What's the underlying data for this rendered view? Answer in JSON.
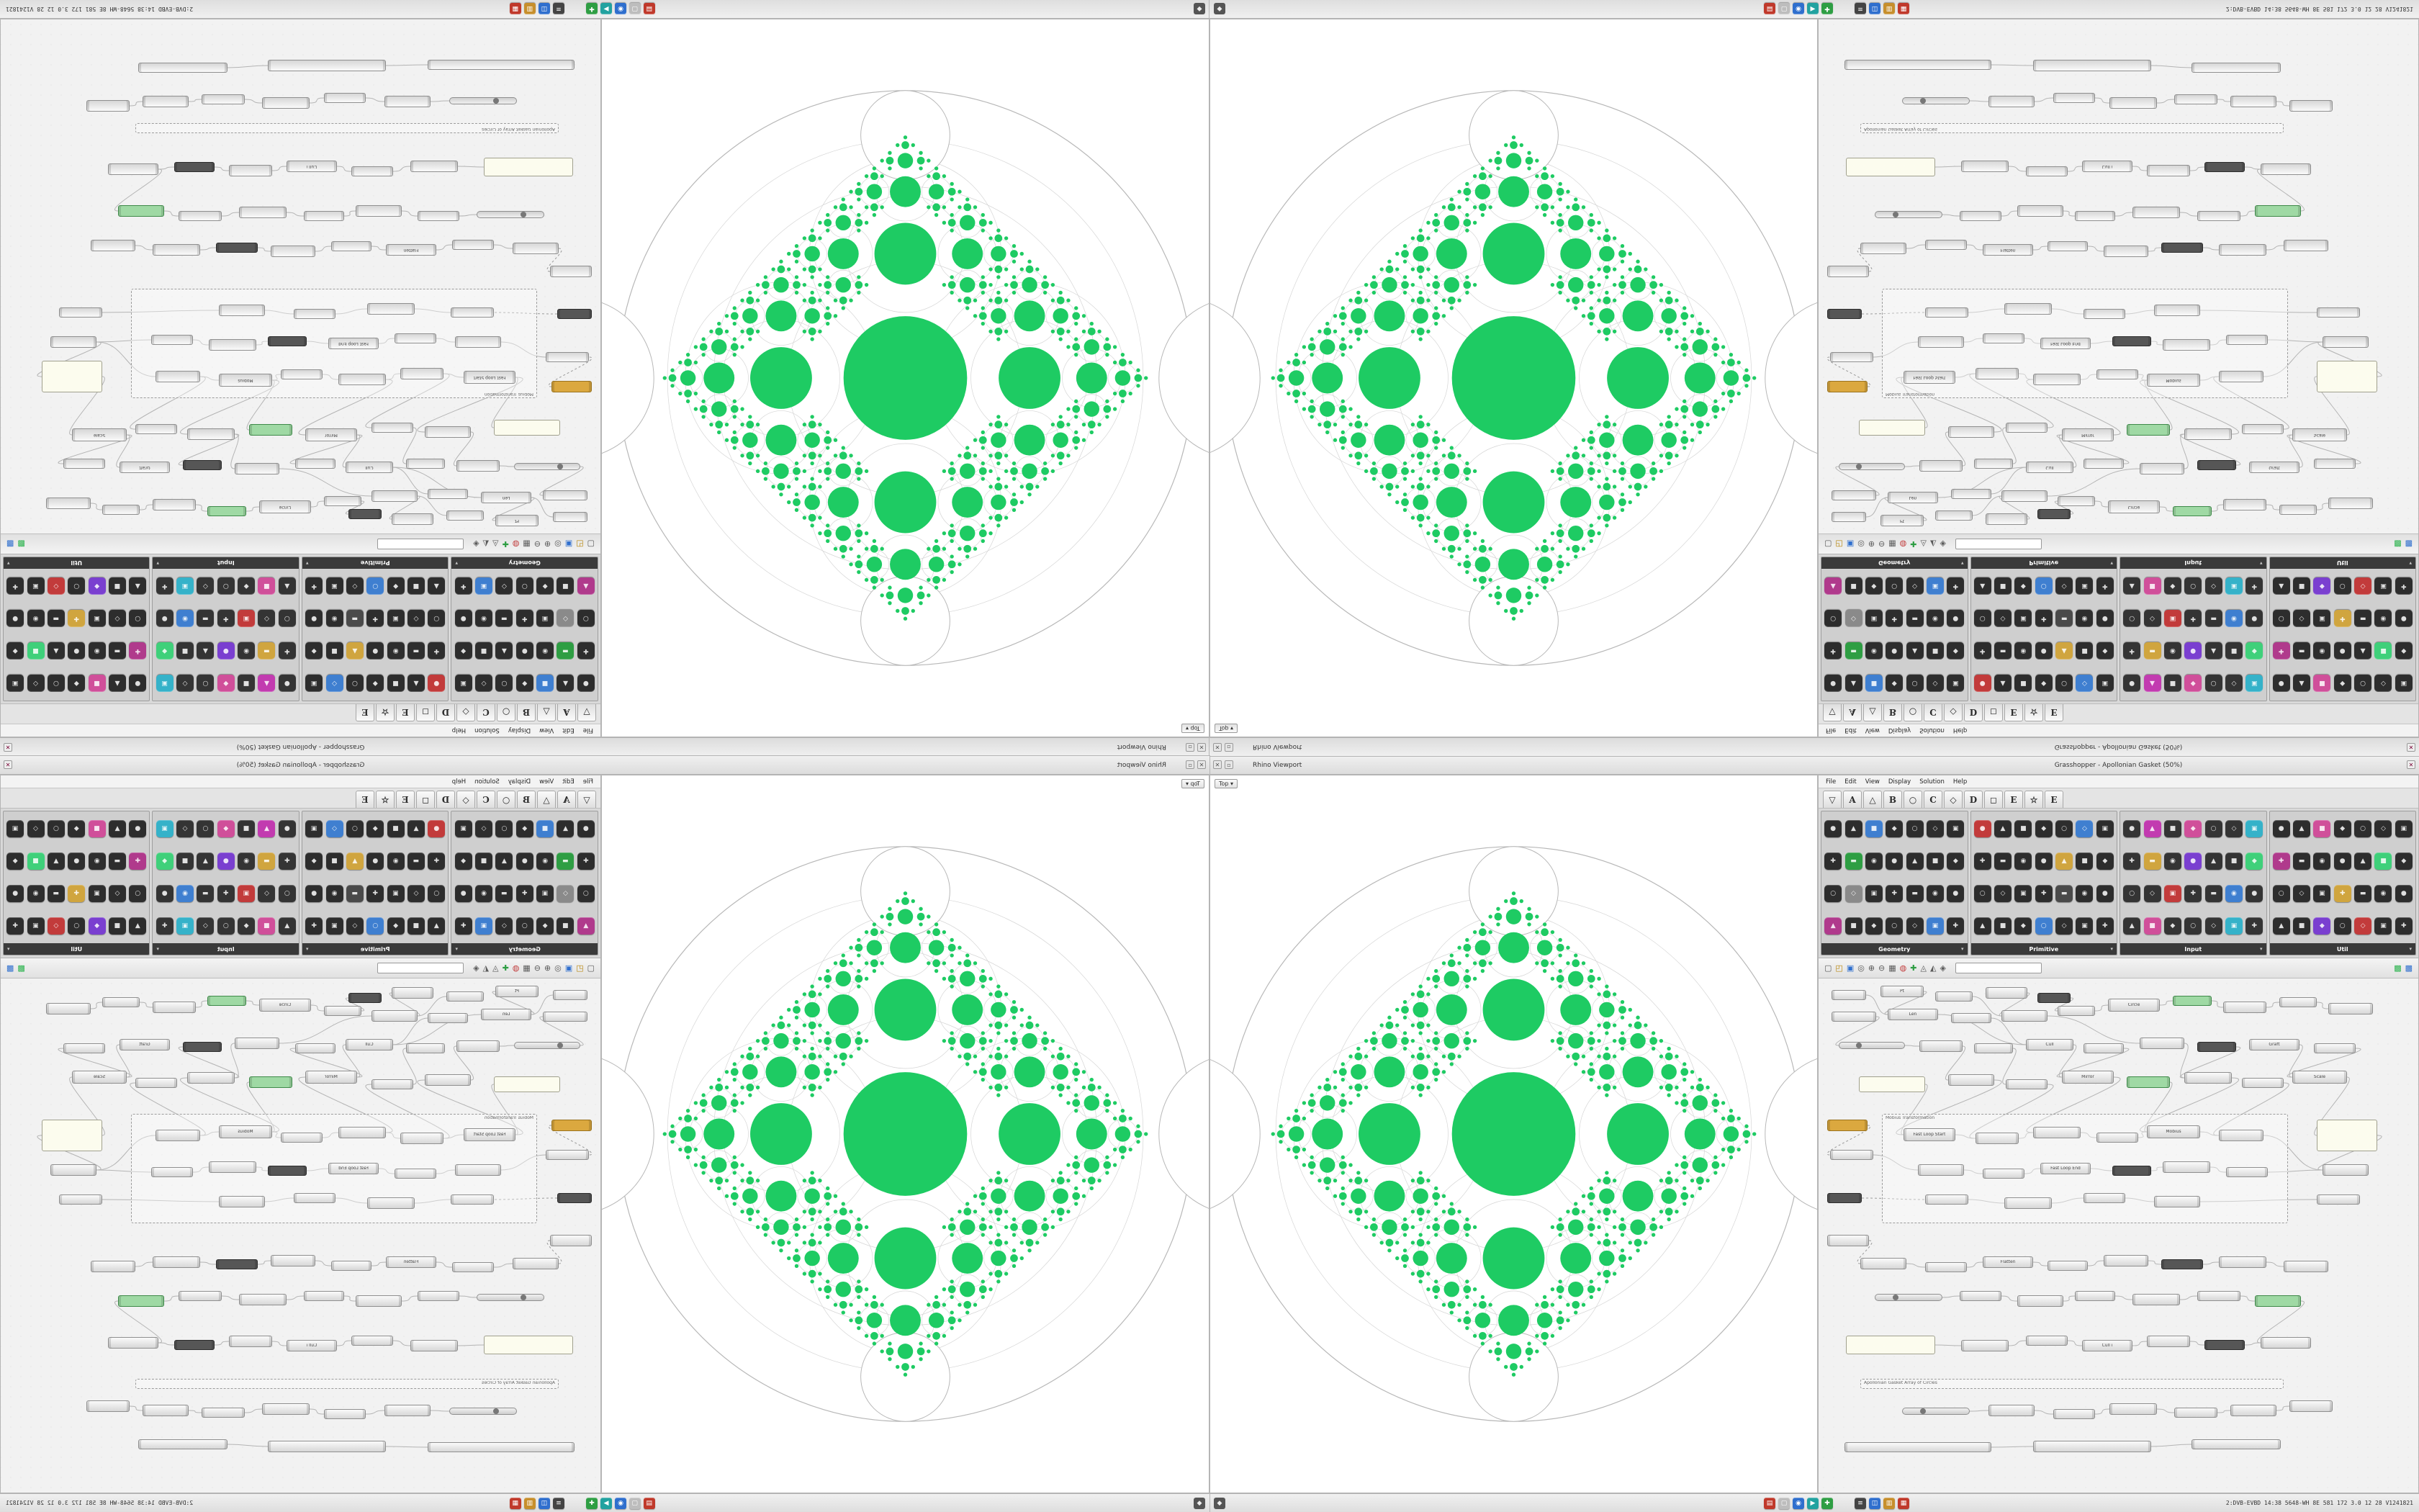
{
  "titlebar": {
    "rhino_title": "Rhino Viewport",
    "gh_title": "Grasshopper - Apollonian Gasket (50%)",
    "close_glyph": "✕",
    "min_glyph": "▫"
  },
  "viewport": {
    "chip_label": "Top",
    "chip_caret": "▾",
    "bg": "#ffffff",
    "fractal": {
      "outer_radius": 400,
      "root_radius": 86,
      "child_ratio": 0.5,
      "gap_factor": 1.34,
      "depth": 5,
      "green": "#1ecb63",
      "lace_color": "#d6d6d6",
      "outer_color": "#b8b8b8",
      "gap_circle": {
        "distance": 338,
        "radius": 62
      },
      "edge_circle_radius": 112
    }
  },
  "menu": {
    "items": [
      "File",
      "Edit",
      "View",
      "Display",
      "Solution",
      "Help"
    ]
  },
  "tabs": [
    {
      "label": "▽"
    },
    {
      "label": "A"
    },
    {
      "label": "△"
    },
    {
      "label": "B"
    },
    {
      "label": "○"
    },
    {
      "label": "C"
    },
    {
      "label": "◇"
    },
    {
      "label": "D"
    },
    {
      "label": "◻"
    },
    {
      "label": "E"
    },
    {
      "label": "☆"
    },
    {
      "label": "E"
    }
  ],
  "palette": {
    "show_all_glyph": "▾",
    "glyph_cycle": [
      "●",
      "▲",
      "■",
      "◆",
      "○",
      "◇",
      "▣",
      "✚",
      "▬",
      "◉"
    ],
    "groups": [
      {
        "name": "Geometry",
        "count": 28,
        "base": "#2d2d2d",
        "accents": {
          "2": "#3f7fd0",
          "8": "#2e9e43",
          "15": "#8a8a8a",
          "21": "#b03a8c",
          "26": "#3f7fd0"
        }
      },
      {
        "name": "Primitive",
        "count": 28,
        "base": "#2d2d2d",
        "accents": {
          "0": "#c23b3b",
          "5": "#3f7fd0",
          "11": "#d0a53f",
          "18": "#4a4a4a",
          "24": "#3f7fd0"
        }
      },
      {
        "name": "Input",
        "count": 28,
        "base": "#343434",
        "accents": {
          "1": "#c23bb0",
          "3": "#d04f9a",
          "6": "#35b2c9",
          "8": "#d0a53f",
          "10": "#7a3fd0",
          "13": "#3fd07a",
          "16": "#c23b3b",
          "19": "#3f7fd0",
          "22": "#d04f9a",
          "26": "#35b2c9"
        }
      },
      {
        "name": "Util",
        "count": 28,
        "base": "#2d2d2d",
        "accents": {
          "2": "#d04f9a",
          "7": "#b03a8c",
          "12": "#3fd07a",
          "17": "#d0a53f",
          "23": "#7a3fd0",
          "25": "#c23b3b"
        }
      }
    ]
  },
  "toolbar": {
    "search_value": "",
    "left_icons": [
      {
        "name": "new-file",
        "glyph": "▢",
        "color": "#5a5a5a"
      },
      {
        "name": "open-file",
        "glyph": "◰",
        "color": "#b8860b"
      },
      {
        "name": "save-file",
        "glyph": "▣",
        "color": "#2f6fce"
      },
      {
        "name": "zoom",
        "glyph": "◎",
        "color": "#5a5a5a"
      },
      {
        "name": "zoom-in",
        "glyph": "⊕",
        "color": "#5a5a5a"
      },
      {
        "name": "zoom-out",
        "glyph": "⊖",
        "color": "#5a5a5a"
      },
      {
        "name": "grid",
        "glyph": "▦",
        "color": "#5a5a5a"
      },
      {
        "name": "sketch",
        "glyph": "◍",
        "color": "#c23b3b"
      },
      {
        "name": "add",
        "glyph": "✚",
        "color": "#2e9e43"
      },
      {
        "name": "wire-display",
        "glyph": "◬",
        "color": "#5a5a5a"
      },
      {
        "name": "cluster",
        "glyph": "◭",
        "color": "#5a5a5a"
      },
      {
        "name": "preview-mesh",
        "glyph": "◈",
        "color": "#5a5a5a"
      }
    ],
    "right_icons": [
      {
        "name": "preview-shaded",
        "glyph": "▩",
        "color": "#27b24a"
      },
      {
        "name": "preview-wire",
        "glyph": "▩",
        "color": "#2f6fce"
      }
    ]
  },
  "canvas": {
    "nodes": [
      [
        18,
        16,
        48,
        14,
        "n",
        ""
      ],
      [
        86,
        10,
        60,
        16,
        "n",
        "Pt"
      ],
      [
        162,
        18,
        52,
        14,
        "n",
        ""
      ],
      [
        232,
        12,
        58,
        16,
        "n",
        ""
      ],
      [
        304,
        20,
        46,
        14,
        "d",
        ""
      ],
      [
        18,
        46,
        62,
        14,
        "n",
        ""
      ],
      [
        96,
        42,
        70,
        16,
        "n",
        "Len"
      ],
      [
        184,
        48,
        56,
        14,
        "n",
        ""
      ],
      [
        254,
        44,
        64,
        16,
        "n",
        ""
      ],
      [
        332,
        38,
        52,
        14,
        "n",
        ""
      ],
      [
        402,
        28,
        72,
        18,
        "n",
        "Circle"
      ],
      [
        492,
        24,
        54,
        14,
        "g",
        ""
      ],
      [
        562,
        32,
        60,
        16,
        "n",
        ""
      ],
      [
        640,
        26,
        52,
        14,
        "n",
        ""
      ],
      [
        708,
        34,
        62,
        16,
        "n",
        ""
      ],
      [
        28,
        88,
        92,
        10,
        "s",
        ""
      ],
      [
        140,
        86,
        60,
        16,
        "n",
        ""
      ],
      [
        216,
        90,
        54,
        14,
        "n",
        ""
      ],
      [
        288,
        84,
        66,
        16,
        "n",
        "Cull"
      ],
      [
        368,
        90,
        56,
        14,
        "n",
        ""
      ],
      [
        446,
        82,
        62,
        16,
        "n",
        ""
      ],
      [
        526,
        88,
        54,
        14,
        "d",
        ""
      ],
      [
        598,
        84,
        70,
        16,
        "n",
        "Graft"
      ],
      [
        688,
        90,
        58,
        14,
        "n",
        ""
      ],
      [
        56,
        136,
        92,
        22,
        "p",
        ""
      ],
      [
        180,
        133,
        64,
        16,
        "n",
        ""
      ],
      [
        260,
        140,
        58,
        14,
        "n",
        ""
      ],
      [
        338,
        128,
        72,
        18,
        "n",
        "Mirror"
      ],
      [
        428,
        136,
        60,
        16,
        "g",
        ""
      ],
      [
        508,
        130,
        66,
        16,
        "n",
        ""
      ],
      [
        588,
        138,
        58,
        14,
        "n",
        ""
      ],
      [
        658,
        128,
        76,
        18,
        "n",
        "Scale"
      ],
      [
        12,
        196,
        56,
        16,
        "o",
        ""
      ],
      [
        16,
        238,
        60,
        14,
        "n",
        ""
      ],
      [
        12,
        298,
        48,
        14,
        "d",
        ""
      ],
      [
        12,
        356,
        58,
        16,
        "n",
        ""
      ],
      [
        88,
        188,
        564,
        152,
        "x",
        "Möbius Transformation"
      ],
      [
        118,
        208,
        72,
        18,
        "n",
        "Fast Loop Start"
      ],
      [
        218,
        214,
        60,
        16,
        "n",
        ""
      ],
      [
        298,
        206,
        66,
        16,
        "n",
        ""
      ],
      [
        386,
        214,
        58,
        14,
        "n",
        ""
      ],
      [
        456,
        204,
        74,
        18,
        "n",
        "Möbius"
      ],
      [
        556,
        210,
        62,
        16,
        "n",
        ""
      ],
      [
        138,
        258,
        64,
        16,
        "n",
        ""
      ],
      [
        228,
        264,
        58,
        14,
        "n",
        ""
      ],
      [
        308,
        256,
        70,
        16,
        "n",
        "Fast Loop End"
      ],
      [
        408,
        260,
        54,
        14,
        "d",
        ""
      ],
      [
        478,
        254,
        66,
        16,
        "n",
        ""
      ],
      [
        566,
        262,
        58,
        14,
        "n",
        ""
      ],
      [
        148,
        300,
        60,
        14,
        "n",
        ""
      ],
      [
        258,
        304,
        66,
        16,
        "n",
        ""
      ],
      [
        368,
        298,
        58,
        14,
        "n",
        ""
      ],
      [
        466,
        302,
        64,
        16,
        "n",
        ""
      ],
      [
        692,
        196,
        84,
        44,
        "p",
        ""
      ],
      [
        700,
        258,
        64,
        16,
        "n",
        ""
      ],
      [
        692,
        300,
        60,
        14,
        "n",
        ""
      ],
      [
        58,
        388,
        64,
        16,
        "n",
        ""
      ],
      [
        148,
        394,
        58,
        14,
        "n",
        ""
      ],
      [
        228,
        386,
        70,
        16,
        "n",
        "Flatten"
      ],
      [
        318,
        392,
        56,
        14,
        "n",
        ""
      ],
      [
        396,
        384,
        62,
        16,
        "n",
        ""
      ],
      [
        476,
        390,
        58,
        14,
        "d",
        ""
      ],
      [
        556,
        386,
        66,
        16,
        "n",
        ""
      ],
      [
        646,
        392,
        62,
        16,
        "n",
        ""
      ],
      [
        78,
        438,
        94,
        10,
        "s",
        ""
      ],
      [
        196,
        434,
        58,
        14,
        "n",
        ""
      ],
      [
        276,
        440,
        64,
        16,
        "n",
        ""
      ],
      [
        356,
        434,
        56,
        14,
        "n",
        ""
      ],
      [
        436,
        438,
        66,
        16,
        "n",
        ""
      ],
      [
        526,
        434,
        60,
        14,
        "n",
        ""
      ],
      [
        606,
        440,
        64,
        16,
        "g",
        ""
      ],
      [
        38,
        496,
        124,
        26,
        "p",
        ""
      ],
      [
        198,
        502,
        66,
        16,
        "n",
        ""
      ],
      [
        288,
        496,
        58,
        14,
        "n",
        ""
      ],
      [
        366,
        502,
        70,
        16,
        "n",
        "Cull i"
      ],
      [
        456,
        496,
        60,
        16,
        "n",
        ""
      ],
      [
        536,
        502,
        56,
        14,
        "d",
        ""
      ],
      [
        614,
        498,
        70,
        16,
        "n",
        ""
      ],
      [
        58,
        556,
        588,
        14,
        "x",
        "Apollonian Gasket Array of Circles"
      ],
      [
        116,
        596,
        94,
        10,
        "s",
        ""
      ],
      [
        236,
        592,
        64,
        16,
        "n",
        ""
      ],
      [
        326,
        598,
        58,
        14,
        "n",
        ""
      ],
      [
        404,
        590,
        66,
        16,
        "n",
        ""
      ],
      [
        494,
        596,
        60,
        14,
        "n",
        ""
      ],
      [
        572,
        592,
        64,
        16,
        "n",
        ""
      ],
      [
        654,
        586,
        60,
        16,
        "n",
        ""
      ],
      [
        36,
        644,
        204,
        14,
        "n",
        ""
      ],
      [
        298,
        642,
        164,
        16,
        "n",
        ""
      ],
      [
        518,
        640,
        124,
        14,
        "n",
        ""
      ]
    ],
    "wires": [
      [
        0,
        6
      ],
      [
        1,
        6
      ],
      [
        2,
        8
      ],
      [
        3,
        8
      ],
      [
        4,
        9
      ],
      [
        5,
        15
      ],
      [
        15,
        16
      ],
      [
        6,
        18
      ],
      [
        7,
        18
      ],
      [
        8,
        20
      ],
      [
        9,
        10
      ],
      [
        10,
        11
      ],
      [
        11,
        12
      ],
      [
        12,
        13
      ],
      [
        13,
        14
      ],
      [
        16,
        25
      ],
      [
        17,
        26
      ],
      [
        18,
        27
      ],
      [
        19,
        27
      ],
      [
        20,
        29
      ],
      [
        21,
        29
      ],
      [
        22,
        31
      ],
      [
        23,
        31
      ],
      [
        24,
        37
      ],
      [
        25,
        37
      ],
      [
        26,
        38
      ],
      [
        27,
        39
      ],
      [
        28,
        41
      ],
      [
        29,
        41
      ],
      [
        30,
        42
      ],
      [
        31,
        53
      ],
      [
        32,
        33,
        1
      ],
      [
        33,
        43
      ],
      [
        34,
        49,
        1
      ],
      [
        35,
        56,
        1
      ],
      [
        37,
        38
      ],
      [
        38,
        39
      ],
      [
        39,
        40
      ],
      [
        40,
        41
      ],
      [
        41,
        42
      ],
      [
        42,
        54
      ],
      [
        43,
        44
      ],
      [
        44,
        45
      ],
      [
        45,
        46
      ],
      [
        46,
        47
      ],
      [
        47,
        48
      ],
      [
        48,
        54
      ],
      [
        49,
        50
      ],
      [
        50,
        51
      ],
      [
        51,
        52
      ],
      [
        52,
        55
      ],
      [
        53,
        54
      ],
      [
        56,
        57
      ],
      [
        57,
        58
      ],
      [
        58,
        59
      ],
      [
        59,
        60
      ],
      [
        60,
        61
      ],
      [
        61,
        62
      ],
      [
        62,
        63
      ],
      [
        64,
        65
      ],
      [
        65,
        66
      ],
      [
        66,
        67
      ],
      [
        67,
        68
      ],
      [
        68,
        69
      ],
      [
        69,
        70
      ],
      [
        70,
        77
      ],
      [
        71,
        72
      ],
      [
        72,
        73
      ],
      [
        73,
        74
      ],
      [
        74,
        75
      ],
      [
        75,
        76
      ],
      [
        76,
        77
      ],
      [
        79,
        80
      ],
      [
        80,
        81
      ],
      [
        81,
        82
      ],
      [
        82,
        83
      ],
      [
        83,
        84
      ],
      [
        84,
        85
      ],
      [
        86,
        87
      ],
      [
        87,
        88
      ]
    ]
  },
  "taskbar": {
    "launcher_glyph": "◆",
    "status": "2:DVB-EVBD 14:38 5648-WH 8E 581 172 3.0 12 28 V1241821",
    "icons": [
      {
        "name": "files",
        "color": "#c0392b",
        "glyph": "▤"
      },
      {
        "name": "editor",
        "color": "#bdbdbd",
        "glyph": "▢"
      },
      {
        "name": "browser",
        "color": "#2f6fce",
        "glyph": "◉"
      },
      {
        "name": "media",
        "color": "#22a2a0",
        "glyph": "▶"
      },
      {
        "name": "chat",
        "color": "#2e9e43",
        "glyph": "✚"
      },
      {
        "name": "terminal",
        "color": "#444444",
        "glyph": "≡",
        "gap": true
      },
      {
        "name": "mail",
        "color": "#2f6fce",
        "glyph": "◫"
      },
      {
        "name": "paint",
        "color": "#c78f2c",
        "glyph": "▥"
      },
      {
        "name": "monitor",
        "color": "#c0392b",
        "glyph": "▦"
      }
    ]
  }
}
